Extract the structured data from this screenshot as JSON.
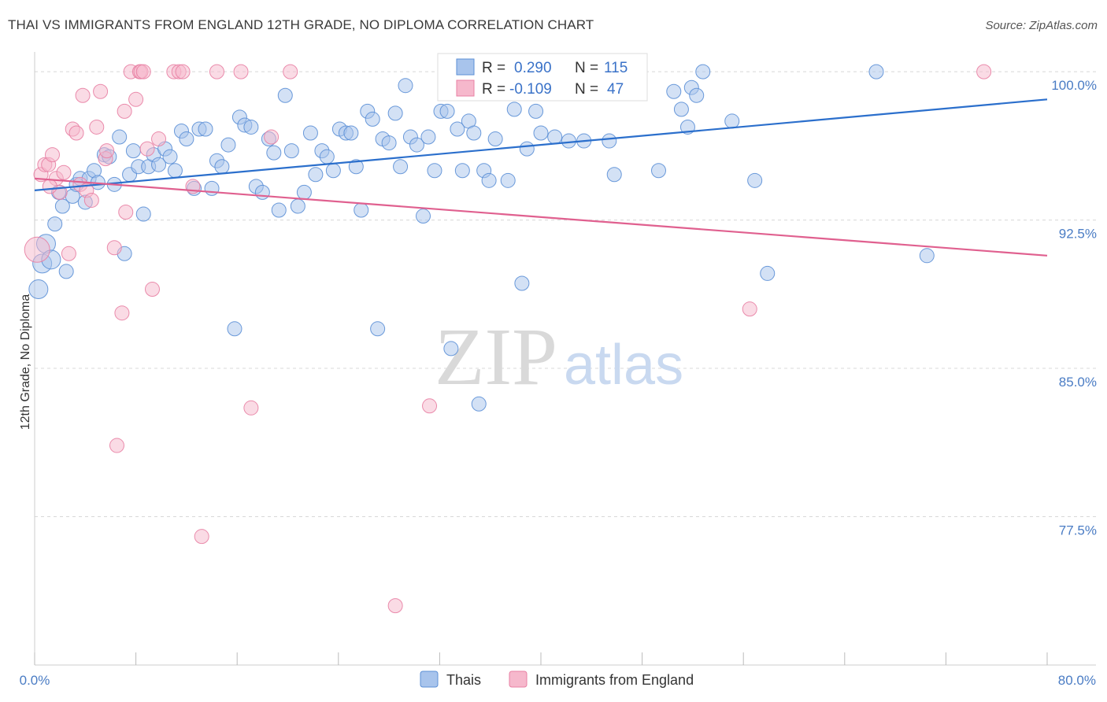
{
  "title": "THAI VS IMMIGRANTS FROM ENGLAND 12TH GRADE, NO DIPLOMA CORRELATION CHART",
  "source": "Source: ZipAtlas.com",
  "watermark": {
    "zip": "ZIP",
    "atlas": "atlas"
  },
  "colors": {
    "blue_fill": "#a8c4ec",
    "blue_stroke": "#5b8fd6",
    "blue_line": "#2b6fcc",
    "pink_fill": "#f6b8cc",
    "pink_stroke": "#e87fa3",
    "pink_line": "#e0608f",
    "axis_text": "#4a7cc4",
    "grid": "#d8d8d8"
  },
  "legend": {
    "rows": [
      {
        "r_label": "R =",
        "r_value": "0.290",
        "n_label": "N =",
        "n_value": "115"
      },
      {
        "r_label": "R =",
        "r_value": "-0.109",
        "n_label": "N =",
        "n_value": "47"
      }
    ]
  },
  "chart_data": {
    "type": "scatter",
    "ylabel": "12th Grade, No Diploma",
    "xlim": [
      0,
      80
    ],
    "ylim": [
      70.0,
      100.8
    ],
    "x_tick_labels": [
      {
        "value": 0,
        "label": "0.0%"
      },
      {
        "value": 80,
        "label": "80.0%"
      }
    ],
    "y_tick_labels": [
      {
        "value": 100.0,
        "label": "100.0%"
      },
      {
        "value": 92.5,
        "label": "92.5%"
      },
      {
        "value": 85.0,
        "label": "85.0%"
      },
      {
        "value": 77.5,
        "label": "77.5%"
      }
    ],
    "legend_placement": "top-center",
    "series": [
      {
        "name": "Thais",
        "trend": {
          "x0": 0,
          "y0": 94.0,
          "x1": 80,
          "y1": 98.6
        },
        "points": [
          [
            0.3,
            89.0
          ],
          [
            0.6,
            90.3
          ],
          [
            0.9,
            91.3
          ],
          [
            1.3,
            90.5
          ],
          [
            1.6,
            92.3
          ],
          [
            1.9,
            93.9
          ],
          [
            2.2,
            93.2
          ],
          [
            2.5,
            89.9
          ],
          [
            3.0,
            93.7
          ],
          [
            3.3,
            94.3
          ],
          [
            3.6,
            94.6
          ],
          [
            4.0,
            93.4
          ],
          [
            4.3,
            94.6
          ],
          [
            4.7,
            95.0
          ],
          [
            5.0,
            94.4
          ],
          [
            5.5,
            95.8
          ],
          [
            5.9,
            95.7
          ],
          [
            6.3,
            94.3
          ],
          [
            6.7,
            96.7
          ],
          [
            7.1,
            90.8
          ],
          [
            7.5,
            94.8
          ],
          [
            7.8,
            96.0
          ],
          [
            8.2,
            95.2
          ],
          [
            8.6,
            92.8
          ],
          [
            9.0,
            95.2
          ],
          [
            9.4,
            95.8
          ],
          [
            9.8,
            95.3
          ],
          [
            10.3,
            96.1
          ],
          [
            10.7,
            95.7
          ],
          [
            11.1,
            95.0
          ],
          [
            11.6,
            97.0
          ],
          [
            12.0,
            96.6
          ],
          [
            12.6,
            94.1
          ],
          [
            13.0,
            97.1
          ],
          [
            13.5,
            97.1
          ],
          [
            14.0,
            94.1
          ],
          [
            14.4,
            95.5
          ],
          [
            14.8,
            95.2
          ],
          [
            15.3,
            96.3
          ],
          [
            15.8,
            87.0
          ],
          [
            16.2,
            97.7
          ],
          [
            16.6,
            97.3
          ],
          [
            17.1,
            97.2
          ],
          [
            17.5,
            94.2
          ],
          [
            18.0,
            93.9
          ],
          [
            18.5,
            96.6
          ],
          [
            18.9,
            95.9
          ],
          [
            19.3,
            93.0
          ],
          [
            19.8,
            98.8
          ],
          [
            20.3,
            96.0
          ],
          [
            20.8,
            93.2
          ],
          [
            21.3,
            93.9
          ],
          [
            21.8,
            96.9
          ],
          [
            22.2,
            94.8
          ],
          [
            22.7,
            96.0
          ],
          [
            23.1,
            95.7
          ],
          [
            23.6,
            95.0
          ],
          [
            24.1,
            97.1
          ],
          [
            24.6,
            96.9
          ],
          [
            25.0,
            96.9
          ],
          [
            25.4,
            95.2
          ],
          [
            25.8,
            93.0
          ],
          [
            26.3,
            98.0
          ],
          [
            26.7,
            97.6
          ],
          [
            27.1,
            87.0
          ],
          [
            27.5,
            96.6
          ],
          [
            28.0,
            96.4
          ],
          [
            28.5,
            97.9
          ],
          [
            28.9,
            95.2
          ],
          [
            29.3,
            99.3
          ],
          [
            29.7,
            96.7
          ],
          [
            30.2,
            96.3
          ],
          [
            30.7,
            92.7
          ],
          [
            31.1,
            96.7
          ],
          [
            31.6,
            95.0
          ],
          [
            32.1,
            98.0
          ],
          [
            32.6,
            98.0
          ],
          [
            32.9,
            86.0
          ],
          [
            33.4,
            97.1
          ],
          [
            33.8,
            95.0
          ],
          [
            34.3,
            97.5
          ],
          [
            34.7,
            96.9
          ],
          [
            35.1,
            83.2
          ],
          [
            35.5,
            95.0
          ],
          [
            35.9,
            94.5
          ],
          [
            36.4,
            96.6
          ],
          [
            36.9,
            100.0
          ],
          [
            37.4,
            94.5
          ],
          [
            37.7,
            98.9
          ],
          [
            37.9,
            98.1
          ],
          [
            38.5,
            89.3
          ],
          [
            38.9,
            96.1
          ],
          [
            39.3,
            99.0
          ],
          [
            39.6,
            98.0
          ],
          [
            40.0,
            96.9
          ],
          [
            40.6,
            100.0
          ],
          [
            41.1,
            96.7
          ],
          [
            41.6,
            100.0
          ],
          [
            42.2,
            96.5
          ],
          [
            42.8,
            99.3
          ],
          [
            43.4,
            96.5
          ],
          [
            44.0,
            100.0
          ],
          [
            45.4,
            96.5
          ],
          [
            45.8,
            94.8
          ],
          [
            47.3,
            100.0
          ],
          [
            49.3,
            95.0
          ],
          [
            50.5,
            99.0
          ],
          [
            51.1,
            98.1
          ],
          [
            51.6,
            97.2
          ],
          [
            51.9,
            99.2
          ],
          [
            52.3,
            98.8
          ],
          [
            52.8,
            100.0
          ],
          [
            55.1,
            97.5
          ],
          [
            56.9,
            94.5
          ],
          [
            57.9,
            89.8
          ],
          [
            70.5,
            90.7
          ],
          [
            66.5,
            100.0
          ]
        ]
      },
      {
        "name": "Immigrants from England",
        "trend": {
          "x0": 0,
          "y0": 94.6,
          "x1": 80,
          "y1": 90.7
        },
        "points": [
          [
            0.2,
            91.0
          ],
          [
            0.5,
            94.8
          ],
          [
            0.8,
            95.3
          ],
          [
            1.1,
            95.3
          ],
          [
            1.4,
            95.8
          ],
          [
            1.7,
            94.6
          ],
          [
            2.0,
            93.9
          ],
          [
            2.3,
            94.9
          ],
          [
            2.7,
            90.8
          ],
          [
            3.0,
            97.1
          ],
          [
            3.3,
            96.9
          ],
          [
            3.6,
            94.3
          ],
          [
            3.8,
            98.8
          ],
          [
            4.1,
            94.0
          ],
          [
            4.5,
            93.5
          ],
          [
            4.9,
            97.2
          ],
          [
            5.2,
            99.0
          ],
          [
            5.6,
            95.6
          ],
          [
            5.7,
            96.0
          ],
          [
            6.3,
            91.1
          ],
          [
            6.5,
            81.1
          ],
          [
            6.9,
            87.8
          ],
          [
            7.1,
            98.0
          ],
          [
            7.2,
            92.9
          ],
          [
            7.6,
            100.0
          ],
          [
            8.0,
            98.6
          ],
          [
            8.3,
            100.0
          ],
          [
            8.4,
            100.0
          ],
          [
            8.6,
            100.0
          ],
          [
            8.9,
            96.1
          ],
          [
            9.3,
            89.0
          ],
          [
            9.8,
            96.6
          ],
          [
            11.0,
            100.0
          ],
          [
            11.4,
            100.0
          ],
          [
            11.7,
            100.0
          ],
          [
            12.5,
            94.2
          ],
          [
            13.2,
            76.5
          ],
          [
            14.4,
            100.0
          ],
          [
            16.3,
            100.0
          ],
          [
            17.1,
            83.0
          ],
          [
            18.7,
            96.7
          ],
          [
            20.2,
            100.0
          ],
          [
            28.5,
            73.0
          ],
          [
            31.2,
            83.1
          ],
          [
            56.5,
            88.0
          ],
          [
            75.0,
            100.0
          ],
          [
            1.2,
            94.2
          ]
        ]
      }
    ]
  }
}
